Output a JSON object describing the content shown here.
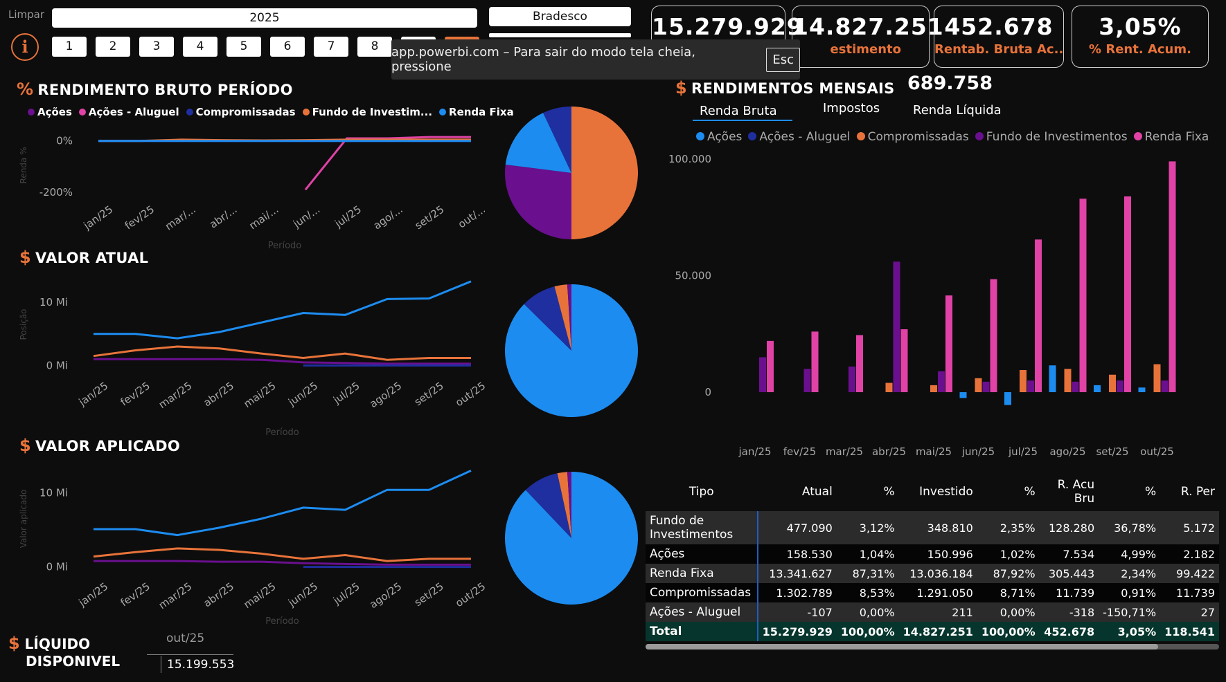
{
  "filters": {
    "clear_label": "Limpar",
    "year": "2025",
    "bank": "Bradesco",
    "months": [
      "1",
      "2",
      "3",
      "4",
      "5",
      "6",
      "7",
      "8"
    ],
    "info_icon": "info-icon"
  },
  "toast": {
    "text": "app.powerbi.com – Para sair do modo tela cheia, pressione",
    "key": "Esc"
  },
  "kpis": [
    {
      "value": "15.279.929",
      "label": ""
    },
    {
      "value": "14.827.251",
      "label": "estimento"
    },
    {
      "value": "452.678",
      "label": "Rentab. Bruta Ac..."
    },
    {
      "value": "3,05%",
      "label": "% Rent. Acum."
    }
  ],
  "colors": {
    "acoes": "#6a0f8e",
    "aluguel": "#e042a6",
    "compromissadas": "#1f2fa0",
    "fundo": "#e8733a",
    "renda_fixa": "#1d8cf0"
  },
  "rend_bruto": {
    "symbol": "%",
    "title": "RENDIMENTO BRUTO PERÍODO",
    "legend": [
      "Ações",
      "Ações - Aluguel",
      "Compromissadas",
      "Fundo de Investim...",
      "Renda Fixa"
    ],
    "y_ticks": [
      "0%",
      "-200%"
    ],
    "y_label": "Renda %",
    "x_label": "Período",
    "x_ticks": [
      "jan/25",
      "fev/25",
      "mar/...",
      "abr/...",
      "mai/...",
      "jun/...",
      "jul/25",
      "ago/...",
      "set/25",
      "out/..."
    ]
  },
  "valor_atual": {
    "symbol": "$",
    "title": "VALOR ATUAL",
    "y_ticks": [
      "10 Mi",
      "0 Mi"
    ],
    "y_label": "Posição",
    "x_label": "Período",
    "x_ticks": [
      "jan/25",
      "fev/25",
      "mar/25",
      "abr/25",
      "mai/25",
      "jun/25",
      "jul/25",
      "ago/25",
      "set/25",
      "out/25"
    ]
  },
  "valor_aplicado": {
    "symbol": "$",
    "title": "VALOR APLICADO",
    "y_ticks": [
      "10 Mi",
      "0 Mi"
    ],
    "y_label": "Valor aplicado",
    "x_label": "Período",
    "x_ticks": [
      "jan/25",
      "fev/25",
      "mar/25",
      "abr/25",
      "mai/25",
      "jun/25",
      "jul/25",
      "ago/25",
      "set/25",
      "out/25"
    ]
  },
  "liquido": {
    "symbol": "$",
    "title_line1": "LÍQUIDO",
    "title_line2": "DISPONIVEL",
    "period": "out/25",
    "value": "15.199.553"
  },
  "mensais": {
    "symbol": "$",
    "title": "RENDIMENTOS MENSAIS",
    "total": "689.758",
    "tabs": [
      "Renda Bruta",
      "Impostos",
      "Renda Líquida"
    ],
    "legend": [
      "Ações",
      "Ações - Aluguel",
      "Compromissadas",
      "Fundo de Investimentos",
      "Renda Fixa"
    ],
    "y_ticks": [
      "100.000",
      "50.000",
      "0"
    ]
  },
  "table": {
    "headers": [
      "Tipo",
      "Atual",
      "%",
      "Investido",
      "%",
      "R. Acu Bru",
      "%",
      "R. Per"
    ],
    "rows": [
      [
        "Fundo de Investimentos",
        "477.090",
        "3,12%",
        "348.810",
        "2,35%",
        "128.280",
        "36,78%",
        "5.172"
      ],
      [
        "Ações",
        "158.530",
        "1,04%",
        "150.996",
        "1,02%",
        "7.534",
        "4,99%",
        "2.182"
      ],
      [
        "Renda Fixa",
        "13.341.627",
        "87,31%",
        "13.036.184",
        "87,92%",
        "305.443",
        "2,34%",
        "99.422"
      ],
      [
        "Compromissadas",
        "1.302.789",
        "8,53%",
        "1.291.050",
        "8,71%",
        "11.739",
        "0,91%",
        "11.739"
      ],
      [
        "Ações - Aluguel",
        "-107",
        "0,00%",
        "211",
        "0,00%",
        "-318",
        "-150,71%",
        "27"
      ]
    ],
    "total": [
      "Total",
      "15.279.929",
      "100,00%",
      "14.827.251",
      "100,00%",
      "452.678",
      "3,05%",
      "118.541"
    ]
  },
  "chart_data": [
    {
      "type": "line",
      "title": "RENDIMENTO BRUTO PERÍODO",
      "xlabel": "Período",
      "ylabel": "Renda %",
      "x": [
        "jan/25",
        "fev/25",
        "mar/25",
        "abr/25",
        "mai/25",
        "jun/25",
        "jul/25",
        "ago/25",
        "set/25",
        "out/25"
      ],
      "series": [
        {
          "name": "Ações",
          "values": [
            0,
            0,
            0,
            0,
            0,
            0,
            0,
            0,
            0,
            0
          ]
        },
        {
          "name": "Ações - Aluguel",
          "values": [
            null,
            null,
            null,
            null,
            null,
            -190,
            10,
            10,
            15,
            15
          ]
        },
        {
          "name": "Compromissadas",
          "values": [
            0,
            0,
            0,
            0,
            0,
            0,
            0,
            0,
            0,
            0
          ]
        },
        {
          "name": "Fundo de Investimentos",
          "values": [
            0,
            0,
            5,
            3,
            2,
            3,
            5,
            5,
            5,
            5
          ]
        },
        {
          "name": "Renda Fixa",
          "values": [
            0,
            0,
            0,
            0,
            0,
            0,
            0,
            0,
            0,
            0
          ]
        }
      ]
    },
    {
      "type": "pie",
      "labels": [
        "Fundo de Investimentos",
        "Ações",
        "Renda Fixa",
        "Compromissadas"
      ],
      "values": [
        50,
        27,
        16,
        7
      ]
    },
    {
      "type": "line",
      "title": "VALOR ATUAL",
      "xlabel": "Período",
      "ylabel": "Posição",
      "x": [
        "jan/25",
        "fev/25",
        "mar/25",
        "abr/25",
        "mai/25",
        "jun/25",
        "jul/25",
        "ago/25",
        "set/25",
        "out/25"
      ],
      "series": [
        {
          "name": "Renda Fixa",
          "values": [
            5.0,
            5.0,
            4.3,
            5.3,
            6.8,
            8.3,
            8.0,
            10.5,
            10.6,
            13.3
          ]
        },
        {
          "name": "Fundo de Investimentos",
          "values": [
            1.5,
            2.4,
            3.0,
            2.7,
            1.9,
            1.2,
            1.9,
            0.9,
            1.2,
            1.2
          ]
        },
        {
          "name": "Ações",
          "values": [
            1.0,
            1.0,
            1.0,
            1.0,
            0.9,
            0.5,
            0.4,
            0.3,
            0.3,
            0.3
          ]
        },
        {
          "name": "Compromissadas",
          "values": [
            null,
            null,
            null,
            null,
            null,
            0,
            0,
            0,
            0,
            0
          ]
        }
      ]
    },
    {
      "type": "pie",
      "labels": [
        "Renda Fixa",
        "Compromissadas",
        "Fundo de Investimentos",
        "Ações"
      ],
      "values": [
        87.3,
        8.5,
        3.1,
        1.0
      ]
    },
    {
      "type": "line",
      "title": "VALOR APLICADO",
      "xlabel": "Período",
      "ylabel": "Valor aplicado",
      "x": [
        "jan/25",
        "fev/25",
        "mar/25",
        "abr/25",
        "mai/25",
        "jun/25",
        "jul/25",
        "ago/25",
        "set/25",
        "out/25"
      ],
      "series": [
        {
          "name": "Renda Fixa",
          "values": [
            5.1,
            5.1,
            4.3,
            5.3,
            6.5,
            8.0,
            7.7,
            10.4,
            10.4,
            13.0
          ]
        },
        {
          "name": "Fundo de Investimentos",
          "values": [
            1.4,
            2.0,
            2.5,
            2.3,
            1.8,
            1.1,
            1.6,
            0.8,
            1.1,
            1.1
          ]
        },
        {
          "name": "Ações",
          "values": [
            0.8,
            0.8,
            0.8,
            0.7,
            0.7,
            0.5,
            0.4,
            0.3,
            0.3,
            0.3
          ]
        },
        {
          "name": "Compromissadas",
          "values": [
            null,
            null,
            null,
            null,
            null,
            0,
            0,
            0,
            0,
            0
          ]
        }
      ]
    },
    {
      "type": "pie",
      "labels": [
        "Renda Fixa",
        "Compromissadas",
        "Fundo de Investimentos",
        "Ações"
      ],
      "values": [
        87.9,
        8.7,
        2.4,
        1.0
      ]
    },
    {
      "type": "bar",
      "title": "RENDIMENTOS MENSAIS",
      "categories": [
        "jan/25",
        "fev/25",
        "mar/25",
        "abr/25",
        "mai/25",
        "jun/25",
        "jul/25",
        "ago/25",
        "set/25",
        "out/25"
      ],
      "ylim": [
        -10000,
        100000
      ],
      "series": [
        {
          "name": "Ações",
          "values": [
            15000,
            10000,
            11000,
            56000,
            9000,
            4500,
            5000,
            4500,
            5000,
            5000
          ]
        },
        {
          "name": "Ações - Aluguel",
          "values": [
            22000,
            26000,
            24500,
            27000,
            41500,
            48500,
            65500,
            83000,
            84000,
            99000
          ]
        },
        {
          "name": "Compromissadas",
          "values": [
            0,
            0,
            0,
            0,
            0,
            0,
            0,
            0,
            0,
            0
          ]
        },
        {
          "name": "Fundo de Investimentos",
          "values": [
            0,
            0,
            0,
            4000,
            3000,
            6000,
            9500,
            10000,
            7500,
            12000
          ]
        },
        {
          "name": "Renda Fixa",
          "values": [
            0,
            0,
            0,
            0,
            0,
            -2500,
            -5500,
            11500,
            3000,
            2000
          ]
        }
      ]
    }
  ]
}
